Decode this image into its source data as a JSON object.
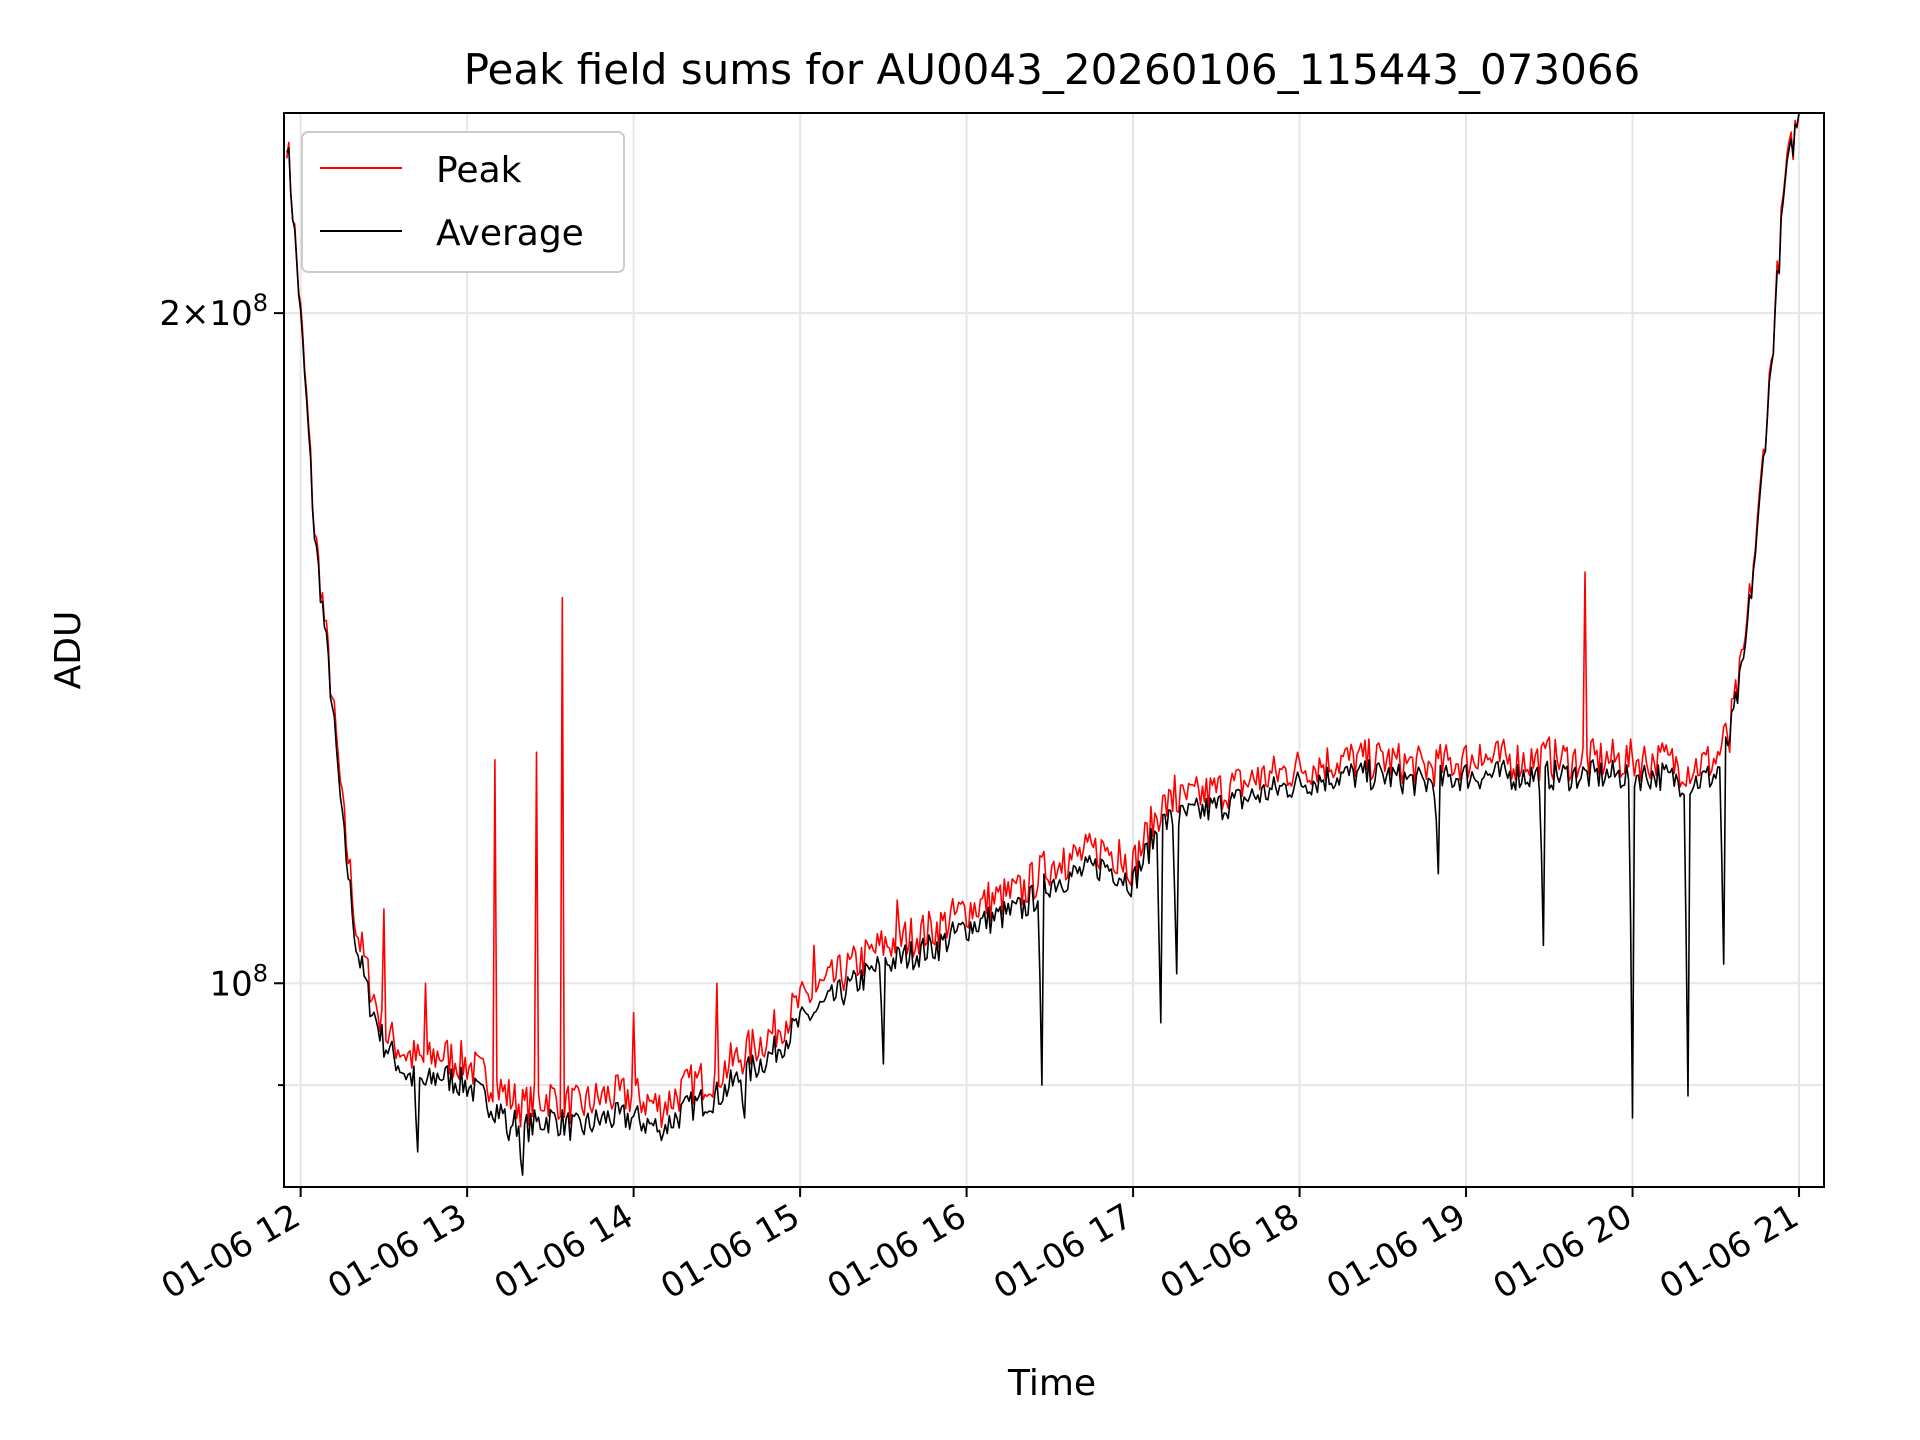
{
  "chart_data": {
    "type": "line",
    "title": "Peak field sums for AU0043_20260106_115443_073066",
    "xlabel": "Time",
    "ylabel": "ADU",
    "x_range": [
      "2026-01-06 11:54",
      "2026-01-06 21:09"
    ],
    "x_ticks": [
      "01-06 12",
      "01-06 13",
      "01-06 14",
      "01-06 15",
      "01-06 16",
      "01-06 17",
      "01-06 18",
      "01-06 19",
      "01-06 20",
      "01-06 21"
    ],
    "y_scale": "log",
    "ylim": [
      81000000,
      246000000
    ],
    "y_ticks": [
      {
        "value": 100000000,
        "label": "10^8"
      },
      {
        "value": 200000000,
        "label": "2×10^8"
      }
    ],
    "grid": true,
    "legend_position": "upper-left",
    "colors": {
      "peak": "#ff0000",
      "average": "#000000"
    },
    "series": [
      {
        "name": "Peak",
        "color": "#ff0000",
        "points": [
          [
            "11:55",
            240000000
          ],
          [
            "12:00",
            200000000
          ],
          [
            "12:05",
            160000000
          ],
          [
            "12:10",
            140000000
          ],
          [
            "12:15",
            120000000
          ],
          [
            "12:20",
            106000000
          ],
          [
            "12:25",
            100000000
          ],
          [
            "12:30",
            95000000
          ],
          [
            "12:38",
            93000000
          ],
          [
            "12:45",
            92000000
          ],
          [
            "12:50",
            93000000
          ],
          [
            "13:00",
            92000000
          ],
          [
            "13:10",
            90000000
          ],
          [
            "13:20",
            88000000
          ],
          [
            "13:30",
            89000000
          ],
          [
            "13:40",
            88000000
          ],
          [
            "13:50",
            89000000
          ],
          [
            "14:00",
            89000000
          ],
          [
            "14:10",
            88000000
          ],
          [
            "14:20",
            90000000
          ],
          [
            "14:30",
            91000000
          ],
          [
            "14:40",
            93000000
          ],
          [
            "14:50",
            95000000
          ],
          [
            "15:00",
            98000000
          ],
          [
            "15:10",
            100000000
          ],
          [
            "15:20",
            102000000
          ],
          [
            "15:30",
            104000000
          ],
          [
            "15:40",
            105000000
          ],
          [
            "15:50",
            106000000
          ],
          [
            "16:00",
            108000000
          ],
          [
            "16:10",
            109000000
          ],
          [
            "16:20",
            110000000
          ],
          [
            "16:30",
            113000000
          ],
          [
            "16:40",
            114000000
          ],
          [
            "16:50",
            115000000
          ],
          [
            "17:00",
            113000000
          ],
          [
            "17:10",
            120000000
          ],
          [
            "17:20",
            121000000
          ],
          [
            "17:30",
            122000000
          ],
          [
            "17:40",
            123000000
          ],
          [
            "17:50",
            124000000
          ],
          [
            "18:00",
            125000000
          ],
          [
            "18:15",
            126000000
          ],
          [
            "18:30",
            126000000
          ],
          [
            "18:45",
            125000000
          ],
          [
            "19:00",
            126000000
          ],
          [
            "19:15",
            126000000
          ],
          [
            "19:30",
            126000000
          ],
          [
            "19:45",
            126000000
          ],
          [
            "20:00",
            126000000
          ],
          [
            "20:10",
            126000000
          ],
          [
            "20:20",
            125000000
          ],
          [
            "20:30",
            126000000
          ],
          [
            "20:35",
            130000000
          ],
          [
            "20:40",
            140000000
          ],
          [
            "20:45",
            160000000
          ],
          [
            "20:50",
            190000000
          ],
          [
            "20:55",
            230000000
          ],
          [
            "21:00",
            246000000
          ]
        ],
        "spikes": [
          [
            "12:30",
            108000000
          ],
          [
            "12:45",
            100000000
          ],
          [
            "13:10",
            126000000
          ],
          [
            "13:25",
            127000000
          ],
          [
            "13:34",
            149000000
          ],
          [
            "14:00",
            97000000
          ],
          [
            "14:30",
            100000000
          ],
          [
            "15:05",
            104000000
          ],
          [
            "15:35",
            109000000
          ],
          [
            "16:08",
            111000000
          ],
          [
            "16:35",
            115000000
          ],
          [
            "16:55",
            116000000
          ],
          [
            "17:15",
            124000000
          ],
          [
            "17:45",
            125000000
          ],
          [
            "18:30",
            127000000
          ],
          [
            "19:05",
            128000000
          ],
          [
            "19:30",
            129000000
          ],
          [
            "19:43",
            153000000
          ],
          [
            "20:10",
            127000000
          ],
          [
            "20:35",
            127000000
          ]
        ]
      },
      {
        "name": "Average",
        "color": "#000000",
        "points": [
          [
            "11:55",
            240000000
          ],
          [
            "12:00",
            199000000
          ],
          [
            "12:05",
            159000000
          ],
          [
            "12:10",
            139000000
          ],
          [
            "12:15",
            118000000
          ],
          [
            "12:20",
            104000000
          ],
          [
            "12:25",
            98000000
          ],
          [
            "12:30",
            94000000
          ],
          [
            "12:38",
            91000000
          ],
          [
            "12:45",
            90000000
          ],
          [
            "12:50",
            91000000
          ],
          [
            "13:00",
            90000000
          ],
          [
            "13:10",
            88000000
          ],
          [
            "13:20",
            86000000
          ],
          [
            "13:30",
            87000000
          ],
          [
            "13:40",
            86000000
          ],
          [
            "13:50",
            87000000
          ],
          [
            "14:00",
            87000000
          ],
          [
            "14:10",
            86000000
          ],
          [
            "14:20",
            88000000
          ],
          [
            "14:30",
            89000000
          ],
          [
            "14:40",
            91000000
          ],
          [
            "14:50",
            93000000
          ],
          [
            "15:00",
            96000000
          ],
          [
            "15:10",
            98000000
          ],
          [
            "15:20",
            100000000
          ],
          [
            "15:30",
            102000000
          ],
          [
            "15:40",
            103000000
          ],
          [
            "15:50",
            104000000
          ],
          [
            "16:00",
            106000000
          ],
          [
            "16:10",
            107000000
          ],
          [
            "16:20",
            108000000
          ],
          [
            "16:30",
            111000000
          ],
          [
            "16:40",
            112000000
          ],
          [
            "16:50",
            113000000
          ],
          [
            "17:00",
            111000000
          ],
          [
            "17:10",
            118000000
          ],
          [
            "17:20",
            119000000
          ],
          [
            "17:30",
            120000000
          ],
          [
            "17:40",
            121000000
          ],
          [
            "17:50",
            122000000
          ],
          [
            "18:00",
            123000000
          ],
          [
            "18:15",
            124000000
          ],
          [
            "18:30",
            124000000
          ],
          [
            "18:45",
            123000000
          ],
          [
            "19:00",
            124000000
          ],
          [
            "19:15",
            124000000
          ],
          [
            "19:30",
            124000000
          ],
          [
            "19:45",
            124000000
          ],
          [
            "20:00",
            124000000
          ],
          [
            "20:10",
            124000000
          ],
          [
            "20:20",
            123000000
          ],
          [
            "20:30",
            124000000
          ],
          [
            "20:35",
            129000000
          ],
          [
            "20:40",
            139000000
          ],
          [
            "20:45",
            159000000
          ],
          [
            "20:50",
            189000000
          ],
          [
            "20:55",
            229000000
          ],
          [
            "21:00",
            246000000
          ]
        ],
        "dips": [
          [
            "12:42",
            84000000
          ],
          [
            "13:15",
            85000000
          ],
          [
            "13:20",
            82000000
          ],
          [
            "14:10",
            85000000
          ],
          [
            "14:40",
            87000000
          ],
          [
            "15:30",
            92000000
          ],
          [
            "16:27",
            90000000
          ],
          [
            "17:10",
            96000000
          ],
          [
            "17:16",
            101000000
          ],
          [
            "18:50",
            112000000
          ],
          [
            "19:28",
            104000000
          ],
          [
            "20:00",
            87000000
          ],
          [
            "20:20",
            89000000
          ],
          [
            "20:33",
            102000000
          ]
        ]
      }
    ]
  }
}
